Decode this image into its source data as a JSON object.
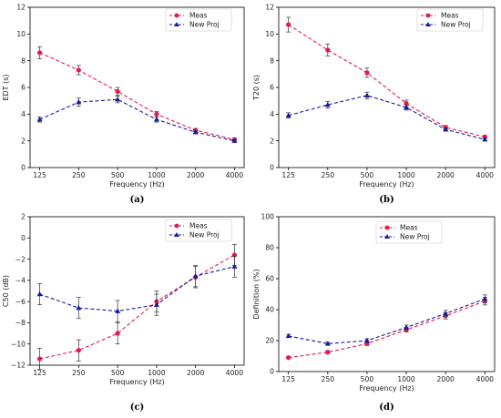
{
  "colors": {
    "meas": "#e6194b",
    "newproj": "#1a1a9c",
    "errorbar": "#333333",
    "axis": "#000000"
  },
  "chart_data": [
    {
      "type": "line",
      "caption": "(a)",
      "xlabel": "Frequency (Hz)",
      "ylabel": "EDT (s)",
      "categories": [
        "125",
        "250",
        "500",
        "1000",
        "2000",
        "4000"
      ],
      "ylim": [
        0,
        12
      ],
      "yticks": [
        "0",
        "2",
        "4",
        "6",
        "8",
        "10",
        "12"
      ],
      "legend_position": "top-right",
      "series": [
        {
          "name": "Meas",
          "marker": "circle",
          "values": [
            8.6,
            7.3,
            5.7,
            4.0,
            2.8,
            2.1
          ],
          "err": [
            0.45,
            0.35,
            0.3,
            0.2,
            0.12,
            0.1
          ]
        },
        {
          "name": "New Proj",
          "marker": "triangle",
          "values": [
            3.6,
            4.9,
            5.1,
            3.6,
            2.65,
            2.0
          ],
          "err": [
            0.2,
            0.3,
            0.25,
            0.2,
            0.12,
            0.1
          ]
        }
      ]
    },
    {
      "type": "line",
      "caption": "(b)",
      "xlabel": "Frequency (Hz)",
      "ylabel": "T20 (s)",
      "categories": [
        "125",
        "250",
        "500",
        "1000",
        "2000",
        "4000"
      ],
      "ylim": [
        0,
        12
      ],
      "yticks": [
        "0",
        "2",
        "4",
        "6",
        "8",
        "10",
        "12"
      ],
      "legend_position": "top-right",
      "series": [
        {
          "name": "Meas",
          "marker": "circle",
          "values": [
            10.7,
            8.8,
            7.1,
            4.8,
            3.0,
            2.3
          ],
          "err": [
            0.55,
            0.45,
            0.35,
            0.25,
            0.15,
            0.1
          ]
        },
        {
          "name": "New Proj",
          "marker": "triangle",
          "values": [
            3.9,
            4.7,
            5.4,
            4.5,
            2.85,
            2.1
          ],
          "err": [
            0.2,
            0.25,
            0.25,
            0.2,
            0.12,
            0.1
          ]
        }
      ]
    },
    {
      "type": "line",
      "caption": "(c)",
      "xlabel": "Frequency (Hz)",
      "ylabel": "C50 (dB)",
      "categories": [
        "125",
        "250",
        "500",
        "1000",
        "2000",
        "4000"
      ],
      "ylim": [
        -12,
        2
      ],
      "yticks": [
        "−12",
        "−10",
        "−8",
        "−6",
        "−4",
        "−2",
        "0",
        "2"
      ],
      "legend_position": "top-right",
      "series": [
        {
          "name": "Meas",
          "marker": "circle",
          "values": [
            -11.4,
            -10.6,
            -9.0,
            -6.0,
            -3.7,
            -1.6
          ],
          "err": [
            1.0,
            1.0,
            1.0,
            1.0,
            1.0,
            1.0
          ]
        },
        {
          "name": "New Proj",
          "marker": "triangle",
          "values": [
            -5.3,
            -6.6,
            -6.9,
            -6.3,
            -3.6,
            -2.7
          ],
          "err": [
            1.0,
            1.0,
            1.0,
            1.0,
            1.0,
            1.0
          ]
        }
      ]
    },
    {
      "type": "line",
      "caption": "(d)",
      "xlabel": "Frequency (Hz)",
      "ylabel": "Definition (%)",
      "categories": [
        "125",
        "250",
        "500",
        "1000",
        "2000",
        "4000"
      ],
      "ylim": [
        0,
        100
      ],
      "yticks": [
        "0",
        "20",
        "40",
        "60",
        "80",
        "100"
      ],
      "legend_position": "top-center",
      "series": [
        {
          "name": "Meas",
          "marker": "circle",
          "values": [
            9,
            12.5,
            18,
            27,
            36,
            45.5
          ],
          "err": [
            0.6,
            0.8,
            1.2,
            1.5,
            2.0,
            2.5
          ]
        },
        {
          "name": "New Proj",
          "marker": "triangle",
          "values": [
            23,
            18,
            20,
            28.5,
            37.5,
            47
          ],
          "err": [
            1.0,
            1.0,
            1.2,
            1.5,
            2.0,
            2.5
          ]
        }
      ]
    }
  ]
}
